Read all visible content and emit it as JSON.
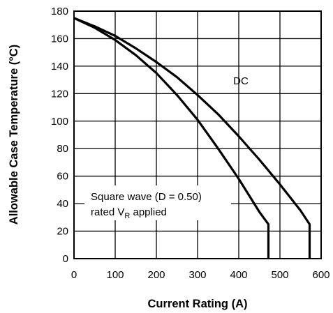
{
  "chart_data": {
    "type": "line",
    "title": "",
    "xlabel": "Current Rating (A)",
    "ylabel": "Allowable Case Temperature (°C)",
    "xlim": [
      0,
      600
    ],
    "ylim": [
      0,
      180
    ],
    "x_ticks": [
      0,
      100,
      200,
      300,
      400,
      500,
      600
    ],
    "y_ticks": [
      0,
      20,
      40,
      60,
      80,
      100,
      120,
      140,
      160,
      180
    ],
    "grid": true,
    "legend": "none",
    "series": [
      {
        "name": "DC",
        "x": [
          0,
          50,
          100,
          150,
          200,
          250,
          300,
          350,
          400,
          450,
          500,
          550,
          572,
          572
        ],
        "y": [
          175,
          169,
          162,
          153,
          143,
          132,
          119,
          105,
          89,
          72,
          54,
          35,
          25,
          0
        ]
      },
      {
        "name": "Square wave (D = 0.50) rated VR applied",
        "x": [
          0,
          50,
          100,
          150,
          200,
          250,
          300,
          350,
          400,
          450,
          472,
          472
        ],
        "y": [
          175,
          168,
          159,
          148,
          135,
          119,
          101,
          80,
          58,
          34,
          25,
          0
        ]
      }
    ],
    "annotations": {
      "dc": "DC",
      "square_line1": "Square wave (D = 0.50)",
      "square_line2_prefix": "rated V",
      "square_line2_sub": "R",
      "square_line2_suffix": " applied"
    }
  }
}
